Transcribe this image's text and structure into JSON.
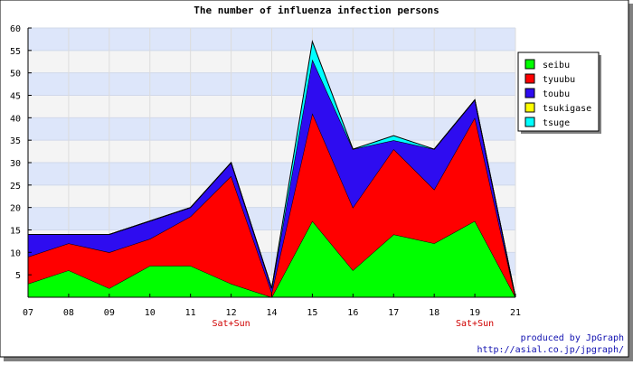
{
  "chart_data": {
    "type": "area",
    "stacked": true,
    "title": "The number of influenza infection persons",
    "categories": [
      "07",
      "08",
      "09",
      "10",
      "11",
      "12",
      "14",
      "15",
      "16",
      "17",
      "18",
      "19",
      "21"
    ],
    "category_notes": [
      "",
      "",
      "",
      "",
      "",
      "Sat+Sun",
      "",
      "",
      "",
      "",
      "",
      "Sat+Sun",
      ""
    ],
    "ylim": [
      0,
      60
    ],
    "yticks": [
      5,
      10,
      15,
      20,
      25,
      30,
      35,
      40,
      45,
      50,
      55,
      60
    ],
    "grid": true,
    "legend_position": "right",
    "series": [
      {
        "name": "seibu",
        "color": "#00ff00",
        "values": [
          3,
          6,
          2,
          7,
          7,
          3,
          0,
          17,
          6,
          14,
          12,
          17,
          0
        ]
      },
      {
        "name": "tyuubu",
        "color": "#ff0000",
        "values": [
          6,
          6,
          8,
          6,
          11,
          24,
          1,
          24,
          14,
          19,
          12,
          23,
          0
        ]
      },
      {
        "name": "toubu",
        "color": "#2e0cf0",
        "values": [
          5,
          2,
          4,
          4,
          2,
          3,
          1,
          12,
          13,
          2,
          9,
          4,
          0
        ]
      },
      {
        "name": "tsukigase",
        "color": "#ffff00",
        "values": [
          0,
          0,
          0,
          0,
          0,
          0,
          0,
          0,
          0,
          0,
          0,
          0,
          0
        ]
      },
      {
        "name": "tsuge",
        "color": "#00ffff",
        "values": [
          0,
          0,
          0,
          0,
          0,
          0,
          0,
          4,
          0,
          1,
          0,
          0,
          0
        ]
      }
    ]
  },
  "credit": {
    "line1": "produced by JpGraph",
    "line2": "http://asial.co.jp/jpgraph/"
  }
}
